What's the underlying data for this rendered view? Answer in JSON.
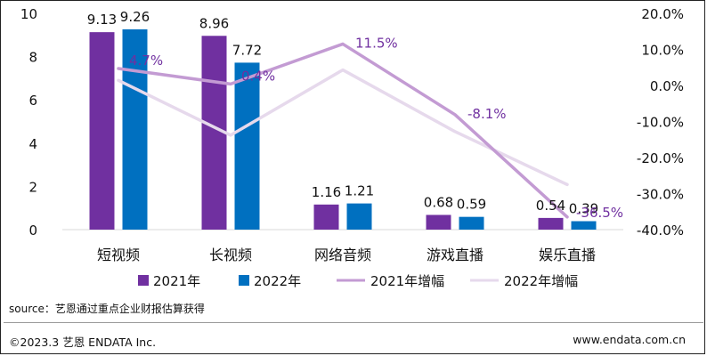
{
  "chart_data": {
    "type": "bar",
    "categories": [
      "短视频",
      "长视频",
      "网络音频",
      "游戏直播",
      "娱乐直播"
    ],
    "series": [
      {
        "name": "2021年",
        "kind": "bar",
        "axis": "left",
        "color": "#7030a0",
        "values": [
          9.13,
          8.96,
          1.16,
          0.68,
          0.54
        ]
      },
      {
        "name": "2022年",
        "kind": "bar",
        "axis": "left",
        "color": "#0070c0",
        "values": [
          9.26,
          7.72,
          1.21,
          0.59,
          0.39
        ]
      },
      {
        "name": "2021年增幅",
        "kind": "line",
        "axis": "right",
        "color": "#c39bd3",
        "values": [
          4.7,
          0.4,
          11.5,
          -8.1,
          -36.5
        ]
      },
      {
        "name": "2022年增幅",
        "kind": "line",
        "axis": "right",
        "color": "#e6d9ec",
        "values": [
          1.4,
          -13.8,
          4.3,
          -12.8,
          -27.5
        ]
      }
    ],
    "bar_labels": [
      [
        "9.13",
        "8.96",
        "1.16",
        "0.68",
        "0.54"
      ],
      [
        "9.26",
        "7.72",
        "1.21",
        "0.59",
        "0.39"
      ]
    ],
    "line_labels": [
      "4.7%",
      "0.4%",
      "11.5%",
      "-8.1%",
      "-36.5%"
    ],
    "y_left": {
      "min": 0,
      "max": 10,
      "ticks": [
        "0",
        "2",
        "4",
        "6",
        "8",
        "10"
      ]
    },
    "y_right": {
      "min": -40,
      "max": 20,
      "ticks": [
        "-40.0%",
        "-30.0%",
        "-20.0%",
        "-10.0%",
        "0.0%",
        "10.0%",
        "20.0%"
      ]
    },
    "legend_position": "bottom"
  },
  "source": "source：艺恩通过重点企业财报估算获得",
  "footer": {
    "copyright": "©2023.3 艺恩 ENDATA Inc.",
    "website": "www.endata.com.cn"
  }
}
